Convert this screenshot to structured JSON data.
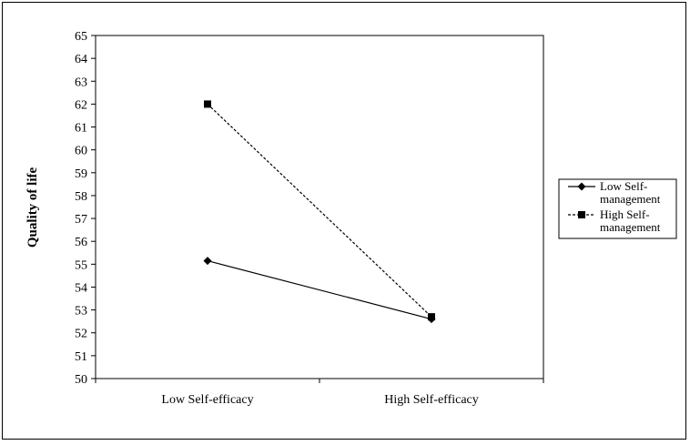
{
  "chart_data": {
    "type": "line",
    "title": "",
    "xlabel": "",
    "ylabel": "Quality of life",
    "categories": [
      "Low Self-efficacy",
      "High Self-efficacy"
    ],
    "ylim": [
      50,
      65
    ],
    "ytick_step": 1,
    "grid": false,
    "legend_position": "right",
    "series": [
      {
        "name_lines": [
          "Low Self-",
          "management"
        ],
        "values": [
          55.15,
          52.6
        ],
        "marker": "diamond",
        "line_style": "solid",
        "color": "#000000"
      },
      {
        "name_lines": [
          "High Self-",
          "management"
        ],
        "values": [
          62.0,
          52.7
        ],
        "marker": "square",
        "line_style": "dashed",
        "color": "#000000"
      }
    ]
  }
}
